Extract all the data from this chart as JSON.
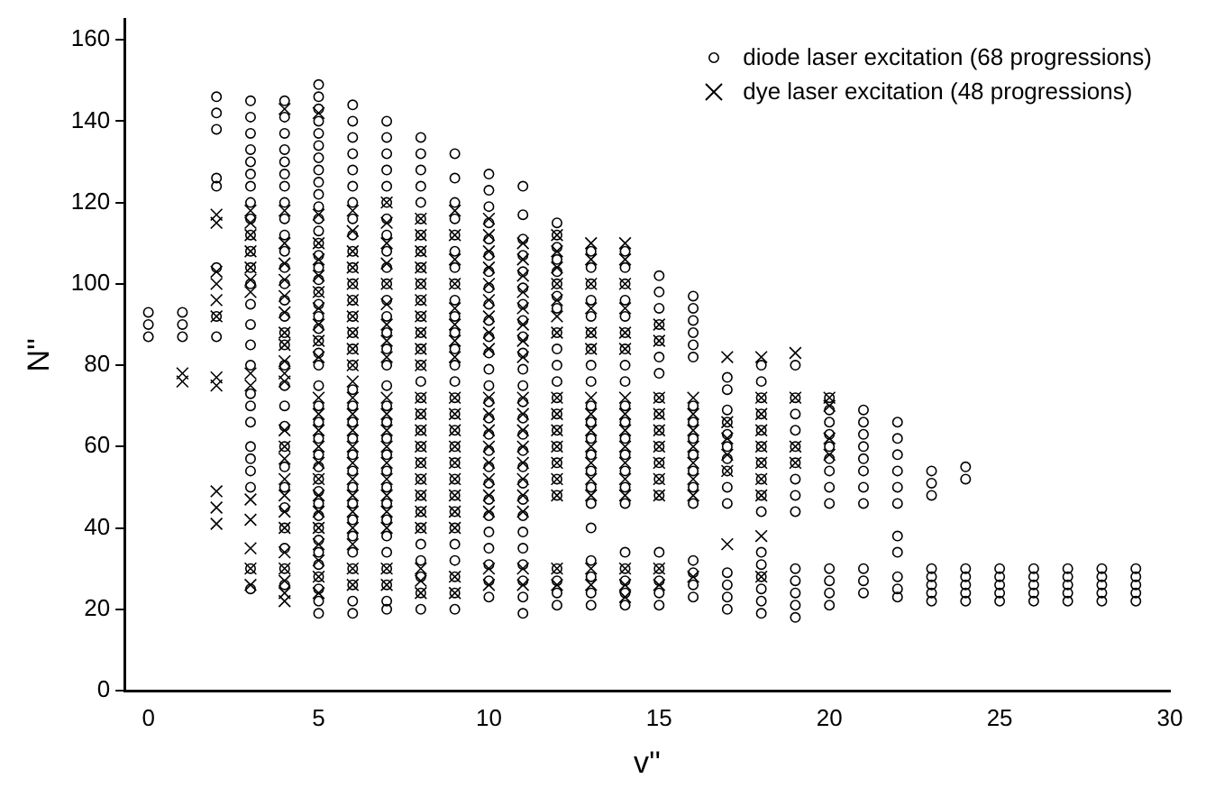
{
  "chart_data": {
    "type": "scatter",
    "xlabel": "v''",
    "ylabel": "N''",
    "xlim": [
      -0.7,
      30
    ],
    "ylim": [
      0,
      165
    ],
    "xticks": [
      0,
      5,
      10,
      15,
      20,
      25,
      30
    ],
    "yticks": [
      0,
      20,
      40,
      60,
      80,
      100,
      120,
      140,
      160
    ],
    "grid": false,
    "legend": "top right",
    "series": [
      {
        "name": "diode laser excitation (68 progressions)",
        "color": "#000000",
        "marker": "circle",
        "x": [
          0,
          0,
          0,
          1,
          1,
          1,
          2,
          2,
          2,
          2,
          2,
          2,
          2,
          2,
          3,
          3,
          3,
          3,
          3,
          3,
          3,
          3,
          3,
          3,
          3,
          3,
          3,
          3,
          3,
          3,
          3,
          3,
          3,
          3,
          3,
          3,
          3,
          3,
          3,
          3,
          4,
          4,
          4,
          4,
          4,
          4,
          4,
          4,
          4,
          4,
          4,
          4,
          4,
          4,
          4,
          4,
          4,
          4,
          4,
          4,
          4,
          4,
          4,
          4,
          4,
          4,
          4,
          4,
          4,
          5,
          5,
          5,
          5,
          5,
          5,
          5,
          5,
          5,
          5,
          5,
          5,
          5,
          5,
          5,
          5,
          5,
          5,
          5,
          5,
          5,
          5,
          5,
          5,
          5,
          5,
          5,
          5,
          5,
          5,
          5,
          5,
          5,
          5,
          5,
          5,
          5,
          5,
          5,
          5,
          5,
          5,
          6,
          6,
          6,
          6,
          6,
          6,
          6,
          6,
          6,
          6,
          6,
          6,
          6,
          6,
          6,
          6,
          6,
          6,
          6,
          6,
          6,
          6,
          6,
          6,
          6,
          6,
          6,
          6,
          6,
          6,
          6,
          6,
          7,
          7,
          7,
          7,
          7,
          7,
          7,
          7,
          7,
          7,
          7,
          7,
          7,
          7,
          7,
          7,
          7,
          7,
          7,
          7,
          7,
          7,
          7,
          7,
          7,
          7,
          7,
          7,
          7,
          7,
          7,
          8,
          8,
          8,
          8,
          8,
          8,
          8,
          8,
          8,
          8,
          8,
          8,
          8,
          8,
          8,
          8,
          8,
          8,
          8,
          8,
          8,
          8,
          8,
          8,
          8,
          8,
          8,
          8,
          8,
          8,
          9,
          9,
          9,
          9,
          9,
          9,
          9,
          9,
          9,
          9,
          9,
          9,
          9,
          9,
          9,
          9,
          9,
          9,
          9,
          9,
          9,
          9,
          9,
          9,
          9,
          9,
          9,
          9,
          10,
          10,
          10,
          10,
          10,
          10,
          10,
          10,
          10,
          10,
          10,
          10,
          10,
          10,
          10,
          10,
          10,
          10,
          10,
          10,
          10,
          10,
          10,
          10,
          10,
          10,
          10,
          11,
          11,
          11,
          11,
          11,
          11,
          11,
          11,
          11,
          11,
          11,
          11,
          11,
          11,
          11,
          11,
          11,
          11,
          11,
          11,
          11,
          11,
          11,
          11,
          11,
          11,
          12,
          12,
          12,
          12,
          12,
          12,
          12,
          12,
          12,
          12,
          12,
          12,
          12,
          12,
          12,
          12,
          12,
          12,
          12,
          12,
          12,
          12,
          12,
          13,
          13,
          13,
          13,
          13,
          13,
          13,
          13,
          13,
          13,
          13,
          13,
          13,
          13,
          13,
          13,
          13,
          13,
          13,
          13,
          13,
          14,
          14,
          14,
          14,
          14,
          14,
          14,
          14,
          14,
          14,
          14,
          14,
          14,
          14,
          14,
          14,
          14,
          14,
          14,
          14,
          14,
          15,
          15,
          15,
          15,
          15,
          15,
          15,
          15,
          15,
          15,
          15,
          15,
          15,
          15,
          15,
          15,
          15,
          15,
          15,
          16,
          16,
          16,
          16,
          16,
          16,
          16,
          16,
          16,
          16,
          16,
          16,
          16,
          16,
          16,
          16,
          16,
          17,
          17,
          17,
          17,
          17,
          17,
          17,
          17,
          17,
          17,
          17,
          17,
          17,
          17,
          18,
          18,
          18,
          18,
          18,
          18,
          18,
          18,
          18,
          18,
          18,
          18,
          18,
          18,
          18,
          18,
          19,
          19,
          19,
          19,
          19,
          19,
          19,
          19,
          19,
          19,
          19,
          19,
          19,
          19,
          20,
          20,
          20,
          20,
          20,
          20,
          20,
          20,
          20,
          20,
          20,
          20,
          20,
          21,
          21,
          21,
          21,
          21,
          21,
          21,
          21,
          21,
          21,
          21,
          22,
          22,
          22,
          22,
          22,
          22,
          22,
          22,
          22,
          22,
          22,
          23,
          23,
          23,
          23,
          23,
          23,
          23,
          23,
          24,
          24,
          24,
          24,
          24,
          24,
          24,
          25,
          25,
          25,
          25,
          25,
          26,
          26,
          26,
          26,
          26,
          27,
          27,
          27,
          27,
          27,
          28,
          28,
          28,
          28,
          28,
          29,
          29,
          29,
          29,
          29
        ],
        "values": [
          87,
          90,
          93,
          87,
          90,
          93,
          146,
          142,
          138,
          126,
          124,
          104,
          92,
          87,
          145,
          141,
          137,
          133,
          130,
          127,
          124,
          120,
          116,
          112,
          108,
          104,
          100,
          95,
          90,
          85,
          80,
          73,
          70,
          66,
          60,
          57,
          54,
          50,
          30,
          25,
          145,
          141,
          137,
          133,
          130,
          127,
          124,
          120,
          116,
          112,
          108,
          104,
          100,
          96,
          92,
          88,
          85,
          80,
          75,
          70,
          65,
          60,
          55,
          50,
          45,
          40,
          35,
          30,
          26,
          149,
          146,
          143,
          140,
          137,
          134,
          131,
          128,
          125,
          122,
          119,
          116,
          113,
          110,
          107,
          104,
          101,
          98,
          95,
          92,
          89,
          86,
          83,
          80,
          75,
          70,
          66,
          62,
          58,
          55,
          52,
          49,
          46,
          43,
          40,
          37,
          34,
          31,
          28,
          25,
          22,
          19,
          144,
          140,
          136,
          132,
          128,
          124,
          120,
          116,
          112,
          108,
          104,
          100,
          96,
          92,
          88,
          84,
          80,
          74,
          70,
          66,
          62,
          58,
          54,
          50,
          46,
          42,
          38,
          34,
          30,
          26,
          22,
          19,
          140,
          136,
          132,
          128,
          124,
          120,
          116,
          112,
          108,
          104,
          100,
          96,
          92,
          88,
          84,
          80,
          75,
          70,
          66,
          62,
          58,
          54,
          50,
          46,
          42,
          38,
          34,
          30,
          26,
          22,
          20,
          136,
          132,
          128,
          124,
          120,
          116,
          112,
          108,
          104,
          100,
          96,
          92,
          88,
          84,
          80,
          76,
          72,
          68,
          64,
          60,
          56,
          52,
          48,
          44,
          40,
          36,
          32,
          28,
          24,
          20,
          132,
          126,
          120,
          116,
          112,
          108,
          104,
          100,
          96,
          92,
          88,
          84,
          80,
          76,
          72,
          68,
          64,
          60,
          56,
          52,
          48,
          44,
          40,
          36,
          32,
          28,
          24,
          20,
          127,
          123,
          119,
          115,
          111,
          107,
          103,
          99,
          95,
          91,
          87,
          83,
          79,
          75,
          71,
          67,
          63,
          59,
          55,
          51,
          47,
          43,
          39,
          35,
          31,
          27,
          23,
          124,
          117,
          111,
          107,
          103,
          99,
          95,
          91,
          87,
          83,
          79,
          75,
          71,
          67,
          63,
          59,
          55,
          51,
          47,
          43,
          39,
          35,
          31,
          27,
          23,
          19,
          115,
          112,
          109,
          106,
          103,
          100,
          97,
          94,
          88,
          84,
          80,
          76,
          72,
          68,
          64,
          60,
          56,
          52,
          48,
          30,
          27,
          24,
          21,
          108,
          104,
          100,
          96,
          92,
          88,
          84,
          80,
          76,
          70,
          66,
          62,
          58,
          54,
          50,
          46,
          40,
          32,
          28,
          24,
          21,
          108,
          104,
          100,
          96,
          92,
          88,
          84,
          80,
          76,
          70,
          66,
          62,
          58,
          54,
          50,
          46,
          34,
          30,
          27,
          24,
          21,
          102,
          98,
          94,
          90,
          86,
          82,
          78,
          72,
          68,
          64,
          60,
          56,
          52,
          48,
          34,
          30,
          27,
          24,
          21,
          97,
          94,
          91,
          88,
          85,
          82,
          70,
          66,
          62,
          58,
          54,
          50,
          46,
          32,
          29,
          26,
          23,
          77,
          74,
          69,
          66,
          63,
          60,
          57,
          54,
          50,
          46,
          29,
          26,
          23,
          20,
          80,
          76,
          72,
          68,
          64,
          60,
          56,
          52,
          48,
          44,
          34,
          31,
          28,
          25,
          22,
          19,
          80,
          72,
          68,
          64,
          60,
          56,
          52,
          48,
          44,
          30,
          27,
          24,
          21,
          18,
          72,
          69,
          66,
          63,
          60,
          57,
          54,
          50,
          46,
          30,
          27,
          24,
          21,
          69,
          66,
          63,
          60,
          57,
          54,
          50,
          46,
          30,
          27,
          24,
          66,
          62,
          58,
          54,
          50,
          46,
          38,
          34,
          28,
          25,
          23,
          54,
          51,
          48,
          30,
          28,
          26,
          24,
          22,
          55,
          52,
          30,
          28,
          26,
          24,
          22,
          30,
          28,
          26,
          24,
          22,
          30,
          28,
          26,
          24,
          22,
          30,
          28,
          26,
          24,
          22,
          30,
          28,
          26,
          24,
          22,
          30,
          28,
          26,
          24,
          22
        ]
      },
      {
        "name": "dye laser excitation (48 progressions)",
        "color": "#000000",
        "marker": "cross",
        "x": [
          1,
          1,
          2,
          2,
          2,
          2,
          2,
          2,
          2,
          2,
          2,
          2,
          2,
          3,
          3,
          3,
          3,
          3,
          3,
          3,
          3,
          3,
          3,
          3,
          3,
          3,
          3,
          4,
          4,
          4,
          4,
          4,
          4,
          4,
          4,
          4,
          4,
          4,
          4,
          4,
          4,
          4,
          4,
          4,
          4,
          4,
          4,
          4,
          4,
          4,
          4,
          5,
          5,
          5,
          5,
          5,
          5,
          5,
          5,
          5,
          5,
          5,
          5,
          5,
          5,
          5,
          5,
          5,
          5,
          5,
          5,
          5,
          5,
          5,
          6,
          6,
          6,
          6,
          6,
          6,
          6,
          6,
          6,
          6,
          6,
          6,
          6,
          6,
          6,
          6,
          6,
          6,
          6,
          6,
          6,
          6,
          6,
          7,
          7,
          7,
          7,
          7,
          7,
          7,
          7,
          7,
          7,
          7,
          7,
          7,
          7,
          7,
          7,
          7,
          7,
          7,
          7,
          8,
          8,
          8,
          8,
          8,
          8,
          8,
          8,
          8,
          8,
          8,
          8,
          8,
          8,
          8,
          8,
          8,
          8,
          8,
          8,
          8,
          8,
          9,
          9,
          9,
          9,
          9,
          9,
          9,
          9,
          9,
          9,
          9,
          9,
          9,
          9,
          9,
          9,
          9,
          9,
          9,
          10,
          10,
          10,
          10,
          10,
          10,
          10,
          10,
          10,
          10,
          10,
          10,
          10,
          10,
          10,
          10,
          10,
          10,
          10,
          11,
          11,
          11,
          11,
          11,
          11,
          11,
          11,
          11,
          11,
          11,
          11,
          11,
          11,
          11,
          11,
          11,
          11,
          12,
          12,
          12,
          12,
          12,
          12,
          12,
          12,
          12,
          12,
          12,
          12,
          12,
          12,
          12,
          12,
          13,
          13,
          13,
          13,
          13,
          13,
          13,
          13,
          13,
          13,
          13,
          13,
          13,
          13,
          13,
          14,
          14,
          14,
          14,
          14,
          14,
          14,
          14,
          14,
          14,
          14,
          14,
          14,
          14,
          14,
          14,
          15,
          15,
          15,
          15,
          15,
          15,
          15,
          15,
          15,
          15,
          15,
          16,
          16,
          16,
          16,
          16,
          16,
          16,
          16,
          17,
          17,
          17,
          17,
          17,
          17,
          18,
          18,
          18,
          18,
          18,
          18,
          18,
          18,
          18,
          18,
          19,
          19,
          19,
          19,
          20,
          20,
          20,
          20
        ],
        "values": [
          76,
          78,
          117,
          115,
          103,
          100,
          96,
          92,
          77,
          75,
          49,
          45,
          41,
          118,
          115,
          112,
          108,
          104,
          101,
          98,
          78,
          75,
          47,
          42,
          35,
          30,
          26,
          143,
          118,
          110,
          105,
          101,
          97,
          93,
          88,
          85,
          81,
          78,
          76,
          64,
          60,
          57,
          52,
          48,
          44,
          40,
          34,
          30,
          27,
          24,
          22,
          142,
          117,
          110,
          106,
          102,
          98,
          94,
          90,
          86,
          82,
          72,
          68,
          64,
          60,
          56,
          52,
          48,
          44,
          40,
          36,
          32,
          28,
          24,
          118,
          113,
          108,
          104,
          100,
          96,
          92,
          88,
          84,
          80,
          76,
          72,
          68,
          64,
          60,
          56,
          52,
          48,
          44,
          40,
          36,
          30,
          26,
          120,
          115,
          110,
          105,
          100,
          95,
          90,
          86,
          82,
          72,
          68,
          64,
          60,
          56,
          52,
          48,
          44,
          40,
          30,
          26,
          116,
          112,
          108,
          104,
          100,
          96,
          92,
          88,
          84,
          80,
          72,
          68,
          64,
          60,
          56,
          52,
          48,
          44,
          40,
          30,
          27,
          24,
          118,
          112,
          106,
          100,
          94,
          90,
          86,
          82,
          72,
          68,
          64,
          60,
          56,
          52,
          48,
          44,
          40,
          28,
          24,
          116,
          112,
          108,
          104,
          100,
          96,
          92,
          88,
          84,
          72,
          68,
          64,
          60,
          56,
          52,
          48,
          44,
          30,
          26,
          110,
          106,
          102,
          98,
          94,
          90,
          86,
          82,
          72,
          68,
          64,
          60,
          56,
          52,
          48,
          44,
          30,
          26,
          112,
          108,
          104,
          100,
          96,
          92,
          88,
          72,
          68,
          64,
          60,
          56,
          52,
          48,
          30,
          26,
          110,
          106,
          100,
          94,
          88,
          84,
          72,
          68,
          64,
          60,
          56,
          52,
          48,
          30,
          26,
          110,
          106,
          100,
          94,
          88,
          84,
          72,
          68,
          64,
          60,
          56,
          52,
          48,
          30,
          26,
          23,
          90,
          86,
          72,
          68,
          64,
          60,
          56,
          52,
          48,
          30,
          26,
          72,
          68,
          64,
          60,
          56,
          52,
          48,
          28,
          82,
          66,
          62,
          58,
          54,
          36,
          82,
          72,
          68,
          64,
          60,
          56,
          52,
          48,
          38,
          28,
          83,
          72,
          60,
          56,
          72,
          70,
          62,
          58
        ]
      }
    ]
  }
}
